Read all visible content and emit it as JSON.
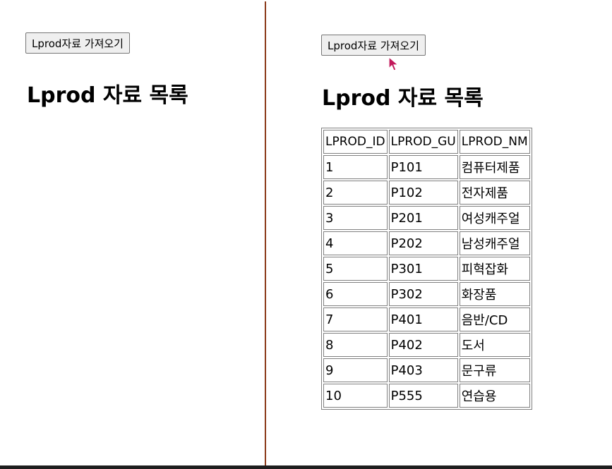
{
  "left_pane": {
    "button_label": "Lprod자료 가져오기",
    "heading": "Lprod 자료 목록"
  },
  "right_pane": {
    "button_label": "Lprod자료 가져오기",
    "heading": "Lprod 자료 목록",
    "table": {
      "headers": [
        "LPROD_ID",
        "LPROD_GU",
        "LPROD_NM"
      ],
      "rows": [
        [
          "1",
          "P101",
          "컴퓨터제품"
        ],
        [
          "2",
          "P102",
          "전자제품"
        ],
        [
          "3",
          "P201",
          "여성캐주얼"
        ],
        [
          "4",
          "P202",
          "남성캐주얼"
        ],
        [
          "5",
          "P301",
          "피혁잡화"
        ],
        [
          "6",
          "P302",
          "화장품"
        ],
        [
          "7",
          "P401",
          "음반/CD"
        ],
        [
          "8",
          "P402",
          "도서"
        ],
        [
          "9",
          "P403",
          "문구류"
        ],
        [
          "10",
          "P555",
          "연습용"
        ]
      ]
    }
  },
  "colors": {
    "divider": "#8b3a1a",
    "cursor": "#c2185b"
  },
  "icons": {
    "cursor": "mouse-pointer-icon"
  }
}
